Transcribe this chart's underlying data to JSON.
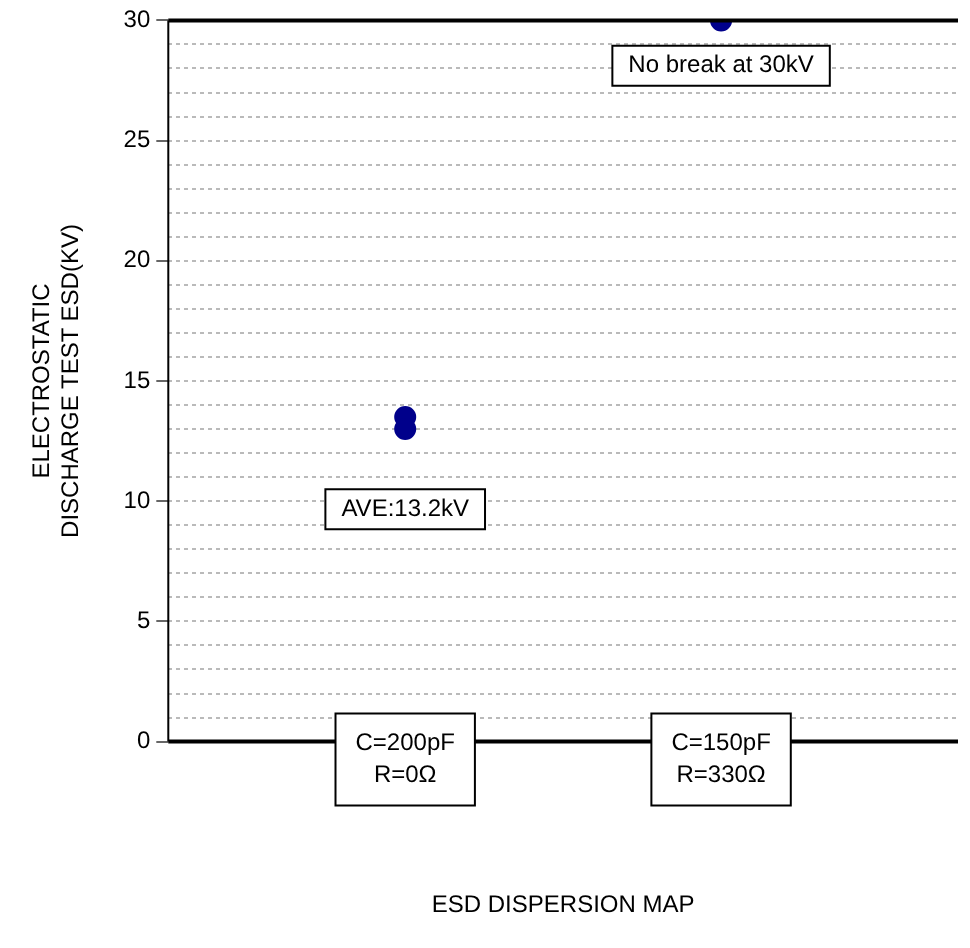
{
  "chart_data": {
    "type": "scatter",
    "xlabel": "ESD DISPERSION MAP",
    "ylabel": "ELECTROSTATIC\nDISCHARGE TEST ESD(KV)",
    "categories": [
      "C=200pF\nR=0Ω",
      "C=150pF\nR=330Ω"
    ],
    "series": [
      {
        "color": "#00008b",
        "x": [
          "C=200pF\nR=0Ω",
          "C=200pF\nR=0Ω",
          "C=150pF\nR=330Ω"
        ],
        "values": [
          13.5,
          13.0,
          30
        ]
      }
    ],
    "ylim": [
      0,
      30
    ],
    "yticks": [
      0,
      {
        "value": 1,
        "label": null
      },
      {
        "value": 2,
        "label": null
      },
      {
        "value": 3,
        "label": null
      },
      {
        "value": 4,
        "label": null
      },
      5,
      {
        "value": 6,
        "label": null
      },
      {
        "value": 7,
        "label": null
      },
      {
        "value": 8,
        "label": null
      },
      {
        "value": 9,
        "label": null
      },
      10,
      {
        "value": 11,
        "label": null
      },
      {
        "value": 12,
        "label": null
      },
      {
        "value": 13,
        "label": null
      },
      {
        "value": 14,
        "label": null
      },
      15,
      {
        "value": 16,
        "label": null
      },
      {
        "value": 17,
        "label": null
      },
      {
        "value": 18,
        "label": null
      },
      {
        "value": 19,
        "label": null
      },
      20,
      {
        "value": 21,
        "label": null
      },
      {
        "value": 22,
        "label": null
      },
      {
        "value": 23,
        "label": null
      },
      {
        "value": 24,
        "label": null
      },
      25,
      {
        "value": 26,
        "label": null
      },
      {
        "value": 27,
        "label": null
      },
      {
        "value": 28,
        "label": null
      },
      {
        "value": 29,
        "label": null
      },
      30
    ],
    "annotations": [
      "AVE:13.2kV",
      "No break at 30kV"
    ],
    "grid": "y",
    "marker": "circle",
    "legend": false
  }
}
